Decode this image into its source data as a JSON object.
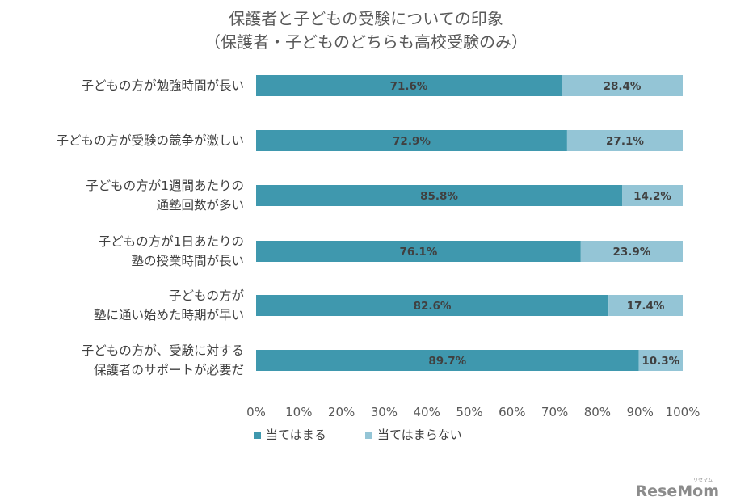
{
  "chart_data": {
    "type": "bar",
    "orientation": "horizontal",
    "stacked": true,
    "title_lines": [
      "保護者と子どもの受験についての印象",
      "（保護者・子どものどちらも高校受験のみ）"
    ],
    "categories": [
      [
        "子どもの方が勉強時間が長い"
      ],
      [
        "子どもの方が受験の競争が激しい"
      ],
      [
        "子どもの方が1週間あたりの",
        "通塾回数が多い"
      ],
      [
        "子どもの方が1日あたりの",
        "塾の授業時間が長い"
      ],
      [
        "子どもの方が",
        "塾に通い始めた時期が早い"
      ],
      [
        "子どもの方が、受験に対する",
        "保護者のサポートが必要だ"
      ]
    ],
    "series": [
      {
        "name": "当てはまる",
        "color": "#3f98ae",
        "values": [
          71.6,
          72.9,
          85.8,
          76.1,
          82.6,
          89.7
        ],
        "labels": [
          "71.6%",
          "72.9%",
          "85.8%",
          "76.1%",
          "82.6%",
          "89.7%"
        ]
      },
      {
        "name": "当てはまらない",
        "color": "#94c5d6",
        "values": [
          28.4,
          27.1,
          14.2,
          23.9,
          17.4,
          10.3
        ],
        "labels": [
          "28.4%",
          "27.1%",
          "14.2%",
          "23.9%",
          "17.4%",
          "10.3%"
        ]
      }
    ],
    "xlim": [
      0,
      100
    ],
    "xticks": [
      "0%",
      "10%",
      "20%",
      "30%",
      "40%",
      "50%",
      "60%",
      "70%",
      "80%",
      "90%",
      "100%"
    ],
    "grid": false,
    "legend_position": "bottom-left"
  },
  "logo": {
    "text": "ReseMom",
    "kana": "リセマム"
  }
}
